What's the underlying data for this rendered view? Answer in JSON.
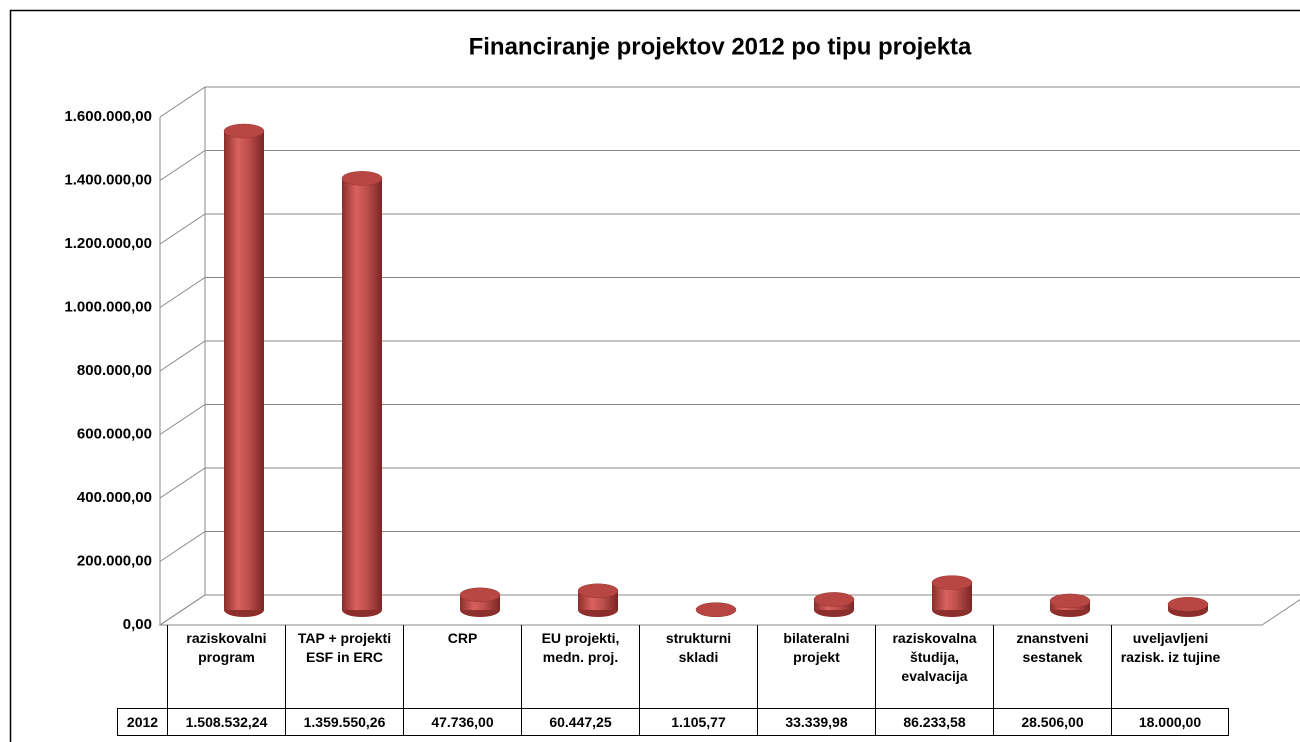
{
  "chart_data": {
    "type": "bar3d",
    "title": "Financiranje projektov 2012 po tipu projekta",
    "categories": [
      "raziskovalni program",
      "TAP + projekti ESF in ERC",
      "CRP",
      "EU projekti, medn. proj.",
      "strukturni skladi",
      "bilateralni projekt",
      "raziskovalna študija, evalvacija",
      "znanstveni sestanek",
      "uveljavljeni razisk. iz tujine"
    ],
    "series": [
      {
        "name": "2012",
        "color": "#c0504d",
        "values": [
          1508532.24,
          1359550.26,
          47736.0,
          60447.25,
          1105.77,
          33339.98,
          86233.58,
          28506.0,
          18000.0
        ],
        "value_labels": [
          "1.508.532,24",
          "1.359.550,26",
          "47.736,00",
          "60.447,25",
          "1.105,77",
          "33.339,98",
          "86.233,58",
          "28.506,00",
          "18.000,00"
        ]
      }
    ],
    "ylim": [
      0,
      1600000
    ],
    "yticks": [
      {
        "value": 0,
        "label": "0,00"
      },
      {
        "value": 200000,
        "label": "200.000,00"
      },
      {
        "value": 400000,
        "label": "400.000,00"
      },
      {
        "value": 600000,
        "label": "600.000,00"
      },
      {
        "value": 800000,
        "label": "800.000,00"
      },
      {
        "value": 1000000,
        "label": "1.000.000,00"
      },
      {
        "value": 1200000,
        "label": "1.200.000,00"
      },
      {
        "value": 1400000,
        "label": "1.400.000,00"
      },
      {
        "value": 1600000,
        "label": "1.600.000,00"
      }
    ],
    "grid": true,
    "data_table": true
  }
}
